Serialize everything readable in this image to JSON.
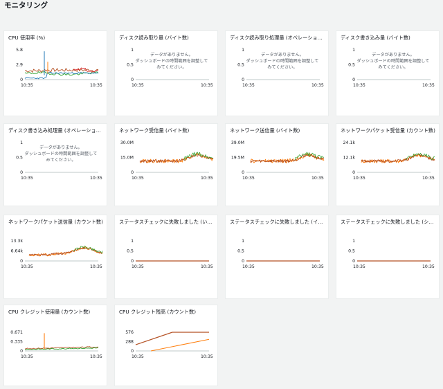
{
  "page": {
    "title": "モニタリング"
  },
  "no_data": {
    "line1": "データがありません。",
    "line2": "ダッシュボードの時間範囲を調整してみてください。"
  },
  "colors": {
    "blue": "#1f77b4",
    "orange": "#ff7f0e",
    "green": "#2ca02c",
    "red": "#d62728",
    "brown": "#b55225"
  },
  "cards": [
    {
      "title": "CPU 使用率 (%)",
      "kind": "cpu",
      "yticks": [
        "5.8",
        "2.9",
        "0"
      ],
      "xticks": [
        "10:35",
        "10:35"
      ]
    },
    {
      "title": "ディスク読み取り量 (バイト数)",
      "kind": "nodata",
      "yticks": [
        "1",
        "0.5",
        "0"
      ],
      "xticks": [
        "10:35",
        "10:35"
      ]
    },
    {
      "title": "ディスク読み取り処理量 (オペレーション数)",
      "kind": "nodata",
      "yticks": [
        "1",
        "0.5",
        "0"
      ],
      "xticks": [
        "10:35",
        "10:35"
      ]
    },
    {
      "title": "ディスク書き込み量 (バイト数)",
      "kind": "nodata",
      "yticks": [
        "1",
        "0.5",
        "0"
      ],
      "xticks": [
        "10:35",
        "10:35"
      ]
    },
    {
      "title": "ディスク書き込み処理量 (オペレーション数)",
      "kind": "nodata",
      "yticks": [
        "1",
        "0.5",
        "0"
      ],
      "xticks": [
        "10:35",
        "10:35"
      ]
    },
    {
      "title": "ネットワーク受信量 (バイト数)",
      "kind": "net",
      "yticks": [
        "30.0M",
        "15.0M",
        "0"
      ],
      "xticks": [
        "10:35",
        "10:35"
      ]
    },
    {
      "title": "ネットワーク送信量 (バイト数)",
      "kind": "net",
      "yticks": [
        "39.0M",
        "19.5M",
        "0"
      ],
      "xticks": [
        "10:35",
        "10:35"
      ]
    },
    {
      "title": "ネットワークパケット受信量 (カウント数)",
      "kind": "net",
      "yticks": [
        "24.1k",
        "12.1k",
        "0"
      ],
      "xticks": [
        "10:35",
        "10:35"
      ]
    },
    {
      "title": "ネットワークパケット送信量 (カウント数)",
      "kind": "net2",
      "yticks": [
        "13.3k",
        "6.64k",
        "0"
      ],
      "xticks": [
        "10:35",
        "10:35"
      ]
    },
    {
      "title": "ステータスチェックに失敗しました (いずれか)",
      "kind": "flat",
      "yticks": [
        "1",
        "0.5",
        "0"
      ],
      "xticks": [
        "10:35",
        "10:35"
      ]
    },
    {
      "title": "ステータスチェックに失敗しました (インスタンス)",
      "kind": "flat",
      "yticks": [
        "1",
        "0.5",
        "0"
      ],
      "xticks": [
        "10:35",
        "10:35"
      ]
    },
    {
      "title": "ステータスチェックに失敗しました (システム)",
      "kind": "flat",
      "yticks": [
        "1",
        "0.5",
        "0"
      ],
      "xticks": [
        "10:35",
        "10:35"
      ]
    },
    {
      "title": "CPU クレジット使用量 (カウント数)",
      "kind": "credit_usage",
      "yticks": [
        "0.671",
        "0.335",
        "0"
      ],
      "xticks": [
        "10:35",
        "10:35"
      ]
    },
    {
      "title": "CPU クレジット残高 (カウント数)",
      "kind": "credit_balance",
      "yticks": [
        "576",
        "288",
        "0"
      ],
      "xticks": [
        "10:35",
        "10:35"
      ]
    }
  ]
}
